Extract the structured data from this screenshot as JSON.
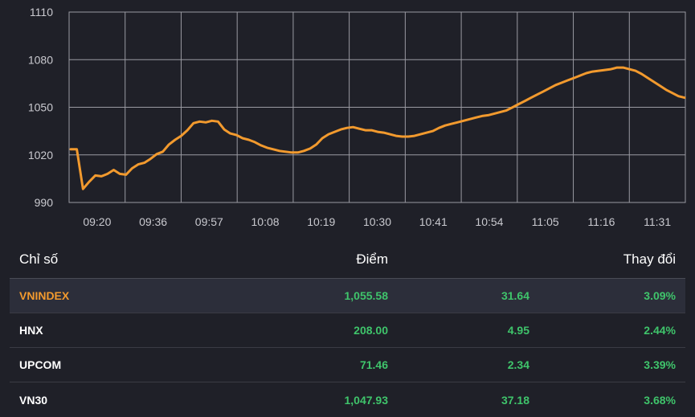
{
  "chart_data": {
    "type": "line",
    "title": "",
    "xlabel": "",
    "ylabel": "",
    "ylim": [
      990,
      1110
    ],
    "y_ticks": [
      1110,
      1080,
      1050,
      1020,
      990
    ],
    "x_tick_labels": [
      "09:20",
      "09:36",
      "09:57",
      "10:08",
      "10:19",
      "10:30",
      "10:41",
      "10:54",
      "11:05",
      "11:16",
      "11:31"
    ],
    "grid": true,
    "line_color": "#f29a2e",
    "series": [
      {
        "name": "VNINDEX",
        "x": [
          0,
          1,
          2,
          3,
          4,
          5,
          6,
          7,
          8,
          9,
          10,
          11,
          12,
          13,
          14,
          15,
          16,
          17,
          18,
          19,
          20,
          21,
          22,
          23,
          24,
          25,
          26,
          27,
          28,
          29,
          30,
          31,
          32,
          33,
          34,
          35,
          36,
          37,
          38,
          39,
          40,
          41,
          42,
          43,
          44,
          45,
          46,
          47,
          48,
          49,
          50,
          51,
          52,
          53,
          54,
          55,
          56,
          57,
          58,
          59,
          60,
          61,
          62,
          63,
          64,
          65,
          66,
          67,
          68,
          69,
          70,
          71,
          72,
          73,
          74,
          75,
          76,
          77,
          78,
          79,
          80,
          81,
          82,
          83,
          84,
          85,
          86,
          87,
          88,
          89,
          90,
          91,
          92,
          93,
          94,
          95,
          96,
          97,
          98,
          99,
          100
        ],
        "values": [
          1023.5,
          1023.5,
          998.5,
          1003,
          1007,
          1006.5,
          1008,
          1010.5,
          1008,
          1007.5,
          1011.5,
          1014,
          1015,
          1017.5,
          1020.5,
          1022,
          1026.5,
          1029.5,
          1032,
          1035.5,
          1040,
          1041,
          1040.5,
          1041.5,
          1041,
          1036,
          1033.5,
          1032.5,
          1030.5,
          1029.5,
          1028,
          1026,
          1024.5,
          1023.5,
          1022.5,
          1022,
          1021.5,
          1021.5,
          1022.5,
          1024,
          1026.5,
          1030.5,
          1033,
          1034.5,
          1036,
          1037,
          1037.5,
          1036.5,
          1035.5,
          1035.5,
          1034.5,
          1034,
          1033,
          1032,
          1031.5,
          1031.5,
          1032,
          1033,
          1034,
          1035,
          1037,
          1038.5,
          1039.5,
          1040.5,
          1041.5,
          1042.5,
          1043.5,
          1044.5,
          1045,
          1046,
          1047,
          1048,
          1050,
          1052,
          1054,
          1056,
          1058,
          1060,
          1062,
          1064,
          1065.5,
          1067,
          1068.5,
          1070,
          1071.5,
          1072.5,
          1073,
          1073.5,
          1074,
          1075,
          1075,
          1074,
          1073,
          1071,
          1068.5,
          1066,
          1063.5,
          1061,
          1059,
          1057,
          1056
        ]
      }
    ]
  },
  "table": {
    "headers": {
      "name": "Chỉ số",
      "points": "Điểm",
      "change": "Thay đổi"
    },
    "rows": [
      {
        "name": "VNINDEX",
        "points": "1,055.58",
        "change": "31.64",
        "pct": "3.09%"
      },
      {
        "name": "HNX",
        "points": "208.00",
        "change": "4.95",
        "pct": "2.44%"
      },
      {
        "name": "UPCOM",
        "points": "71.46",
        "change": "2.34",
        "pct": "3.39%"
      },
      {
        "name": "VN30",
        "points": "1,047.93",
        "change": "37.18",
        "pct": "3.68%"
      }
    ]
  }
}
